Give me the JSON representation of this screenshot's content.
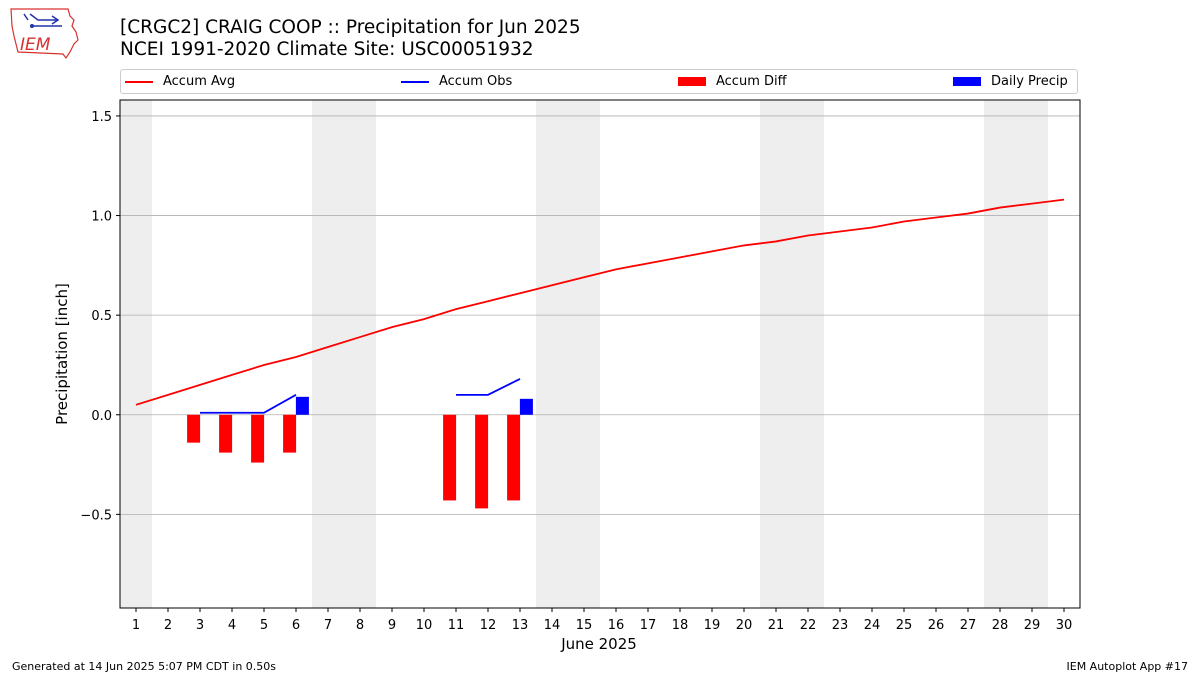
{
  "title_line1": "[CRGC2] CRAIG COOP :: Precipitation for Jun 2025",
  "title_line2": "NCEI 1991-2020 Climate Site: USC00051932",
  "logo_text": "IEM",
  "footer_left": "Generated at 14 Jun 2025 5:07 PM CDT in 0.50s",
  "footer_right": "IEM Autoplot App #17",
  "colors": {
    "avg": "#ff0000",
    "obs": "#0000ff",
    "diff": "#ff0000",
    "precip": "#0000ff",
    "weekend_shade": "#eeeeee",
    "grid": "#b0b0b0"
  },
  "legend": [
    {
      "label": "Accum Avg",
      "kind": "line",
      "color": "#ff0000"
    },
    {
      "label": "Accum Obs",
      "kind": "line",
      "color": "#0000ff"
    },
    {
      "label": "Accum Diff",
      "kind": "bar",
      "color": "#ff0000"
    },
    {
      "label": "Daily Precip",
      "kind": "bar",
      "color": "#0000ff"
    }
  ],
  "chart_data": {
    "type": "bar",
    "xlabel": "June 2025",
    "ylabel": "Precipitation [inch]",
    "xlim": [
      0.5,
      30.5
    ],
    "ylim": [
      -0.97,
      1.58
    ],
    "yticks": [
      -0.5,
      0.0,
      0.5,
      1.0,
      1.5
    ],
    "ytick_labels": [
      "−0.5",
      "0.0",
      "0.5",
      "1.0",
      "1.5"
    ],
    "xticks": [
      1,
      2,
      3,
      4,
      5,
      6,
      7,
      8,
      9,
      10,
      11,
      12,
      13,
      14,
      15,
      16,
      17,
      18,
      19,
      20,
      21,
      22,
      23,
      24,
      25,
      26,
      27,
      28,
      29,
      30
    ],
    "grid": "horizontal",
    "legend_position": "top",
    "weekend_shading": [
      [
        0.5,
        1.5
      ],
      [
        6.5,
        8.5
      ],
      [
        13.5,
        15.5
      ],
      [
        20.5,
        22.5
      ],
      [
        27.5,
        29.5
      ]
    ],
    "series": [
      {
        "name": "Accum Avg",
        "type": "line",
        "x": [
          1,
          2,
          3,
          4,
          5,
          6,
          7,
          8,
          9,
          10,
          11,
          12,
          13,
          14,
          15,
          16,
          17,
          18,
          19,
          20,
          21,
          22,
          23,
          24,
          25,
          26,
          27,
          28,
          29,
          30
        ],
        "values": [
          0.05,
          0.1,
          0.15,
          0.2,
          0.25,
          0.29,
          0.34,
          0.39,
          0.44,
          0.48,
          0.53,
          0.57,
          0.61,
          0.65,
          0.69,
          0.73,
          0.76,
          0.79,
          0.82,
          0.85,
          0.87,
          0.9,
          0.92,
          0.94,
          0.97,
          0.99,
          1.01,
          1.04,
          1.06,
          1.08
        ]
      },
      {
        "name": "Accum Obs",
        "type": "line",
        "segments": [
          {
            "x": [
              3,
              4,
              5,
              6
            ],
            "values": [
              0.01,
              0.01,
              0.01,
              0.1
            ]
          },
          {
            "x": [
              11,
              12,
              13
            ],
            "values": [
              0.1,
              0.1,
              0.18
            ]
          }
        ]
      },
      {
        "name": "Accum Diff",
        "type": "bar",
        "x": [
          3,
          4,
          5,
          6,
          11,
          12,
          13
        ],
        "values": [
          -0.14,
          -0.19,
          -0.24,
          -0.19,
          -0.43,
          -0.47,
          -0.43
        ]
      },
      {
        "name": "Daily Precip",
        "type": "bar",
        "x": [
          6,
          13
        ],
        "values": [
          0.09,
          0.08
        ]
      }
    ]
  }
}
